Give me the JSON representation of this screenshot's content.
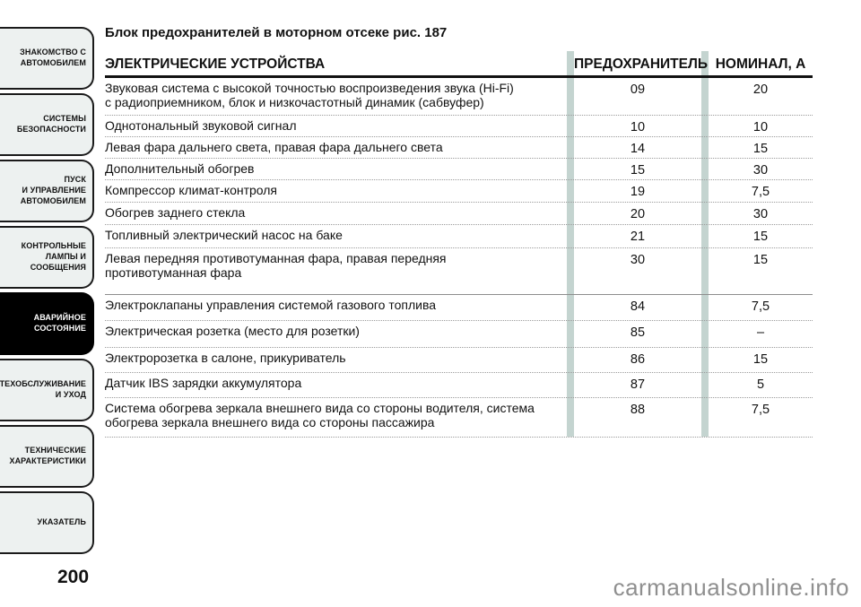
{
  "page": {
    "title": "Блок предохранителей в моторном отсеке рис. 187",
    "page_number": "200",
    "watermark": "carmanualsonline.info"
  },
  "sidebar": {
    "items": [
      {
        "label": "ЗНАКОМСТВО С\nАВТОМОБИЛЕМ",
        "active": false
      },
      {
        "label": "СИСТЕМЫ\nБЕЗОПАСНОСТИ",
        "active": false
      },
      {
        "label": "ПУСК\nИ УПРАВЛЕНИЕ\nАВТОМОБИЛЕМ",
        "active": false
      },
      {
        "label": "КОНТРОЛЬНЫЕ\nЛАМПЫ И\nСООБЩЕНИЯ",
        "active": false
      },
      {
        "label": "АВАРИЙНОЕ\nСОСТОЯНИЕ",
        "active": true
      },
      {
        "label": "ТЕХОБСЛУЖИВАНИЕ\nИ УХОД",
        "active": false
      },
      {
        "label": "ТЕХНИЧЕСКИЕ\nХАРАКТЕРИСТИКИ",
        "active": false
      },
      {
        "label": "УКАЗАТЕЛЬ",
        "active": false
      }
    ]
  },
  "table": {
    "headers": [
      "ЭЛЕКТРИЧЕСКИЕ УСТРОЙСТВА",
      "ПРЕДОХРАНИТЕЛЬ",
      "НОМИНАЛ, А"
    ],
    "rows": [
      {
        "device": "Звуковая система с высокой точностью воспроизведения звука (Hi-Fi)\nс радиоприемником, блок и низкочастотный динамик (сабвуфер)",
        "fuse": "09",
        "amp": "20"
      },
      {
        "device": "Однотональный звуковой сигнал",
        "fuse": "10",
        "amp": "10"
      },
      {
        "device": "Левая фара дальнего света, правая фара дальнего света",
        "fuse": "14",
        "amp": "15"
      },
      {
        "device": "Дополнительный обогрев",
        "fuse": "15",
        "amp": "30"
      },
      {
        "device": "Компрессор климат-контроля",
        "fuse": "19",
        "amp": "7,5"
      },
      {
        "device": "Обогрев заднего стекла",
        "fuse": "20",
        "amp": "30"
      },
      {
        "device": "Топливный электрический насос на баке",
        "fuse": "21",
        "amp": "15"
      },
      {
        "device": "Левая передняя противотуманная фара, правая передняя\nпротивотуманная фара",
        "fuse": "30",
        "amp": "15"
      },
      {
        "device": "Электроклапаны управления системой газового топлива",
        "fuse": "84",
        "amp": "7,5"
      },
      {
        "device": "Электрическая розетка (место для розетки)",
        "fuse": "85",
        "amp": "–"
      },
      {
        "device": "Электророзетка в салоне, прикуриватель",
        "fuse": "86",
        "amp": "15"
      },
      {
        "device": "Датчик IBS зарядки аккумулятора",
        "fuse": "87",
        "amp": "5"
      },
      {
        "device": "Система обогрева зеркала внешнего вида со стороны водителя, система\nобогрева зеркала внешнего вида со стороны пассажира",
        "fuse": "88",
        "amp": "7,5"
      }
    ]
  },
  "colors": {
    "text": "#111111",
    "tab_bg": "#edf1f0",
    "tab_border": "#1a1a1a",
    "active_bg": "#000000",
    "active_text": "#ffffff",
    "bar": "#c4d4d0",
    "dotted": "#9b9b9b",
    "header_line": "#111111",
    "watermark": "#8f8f8f"
  }
}
